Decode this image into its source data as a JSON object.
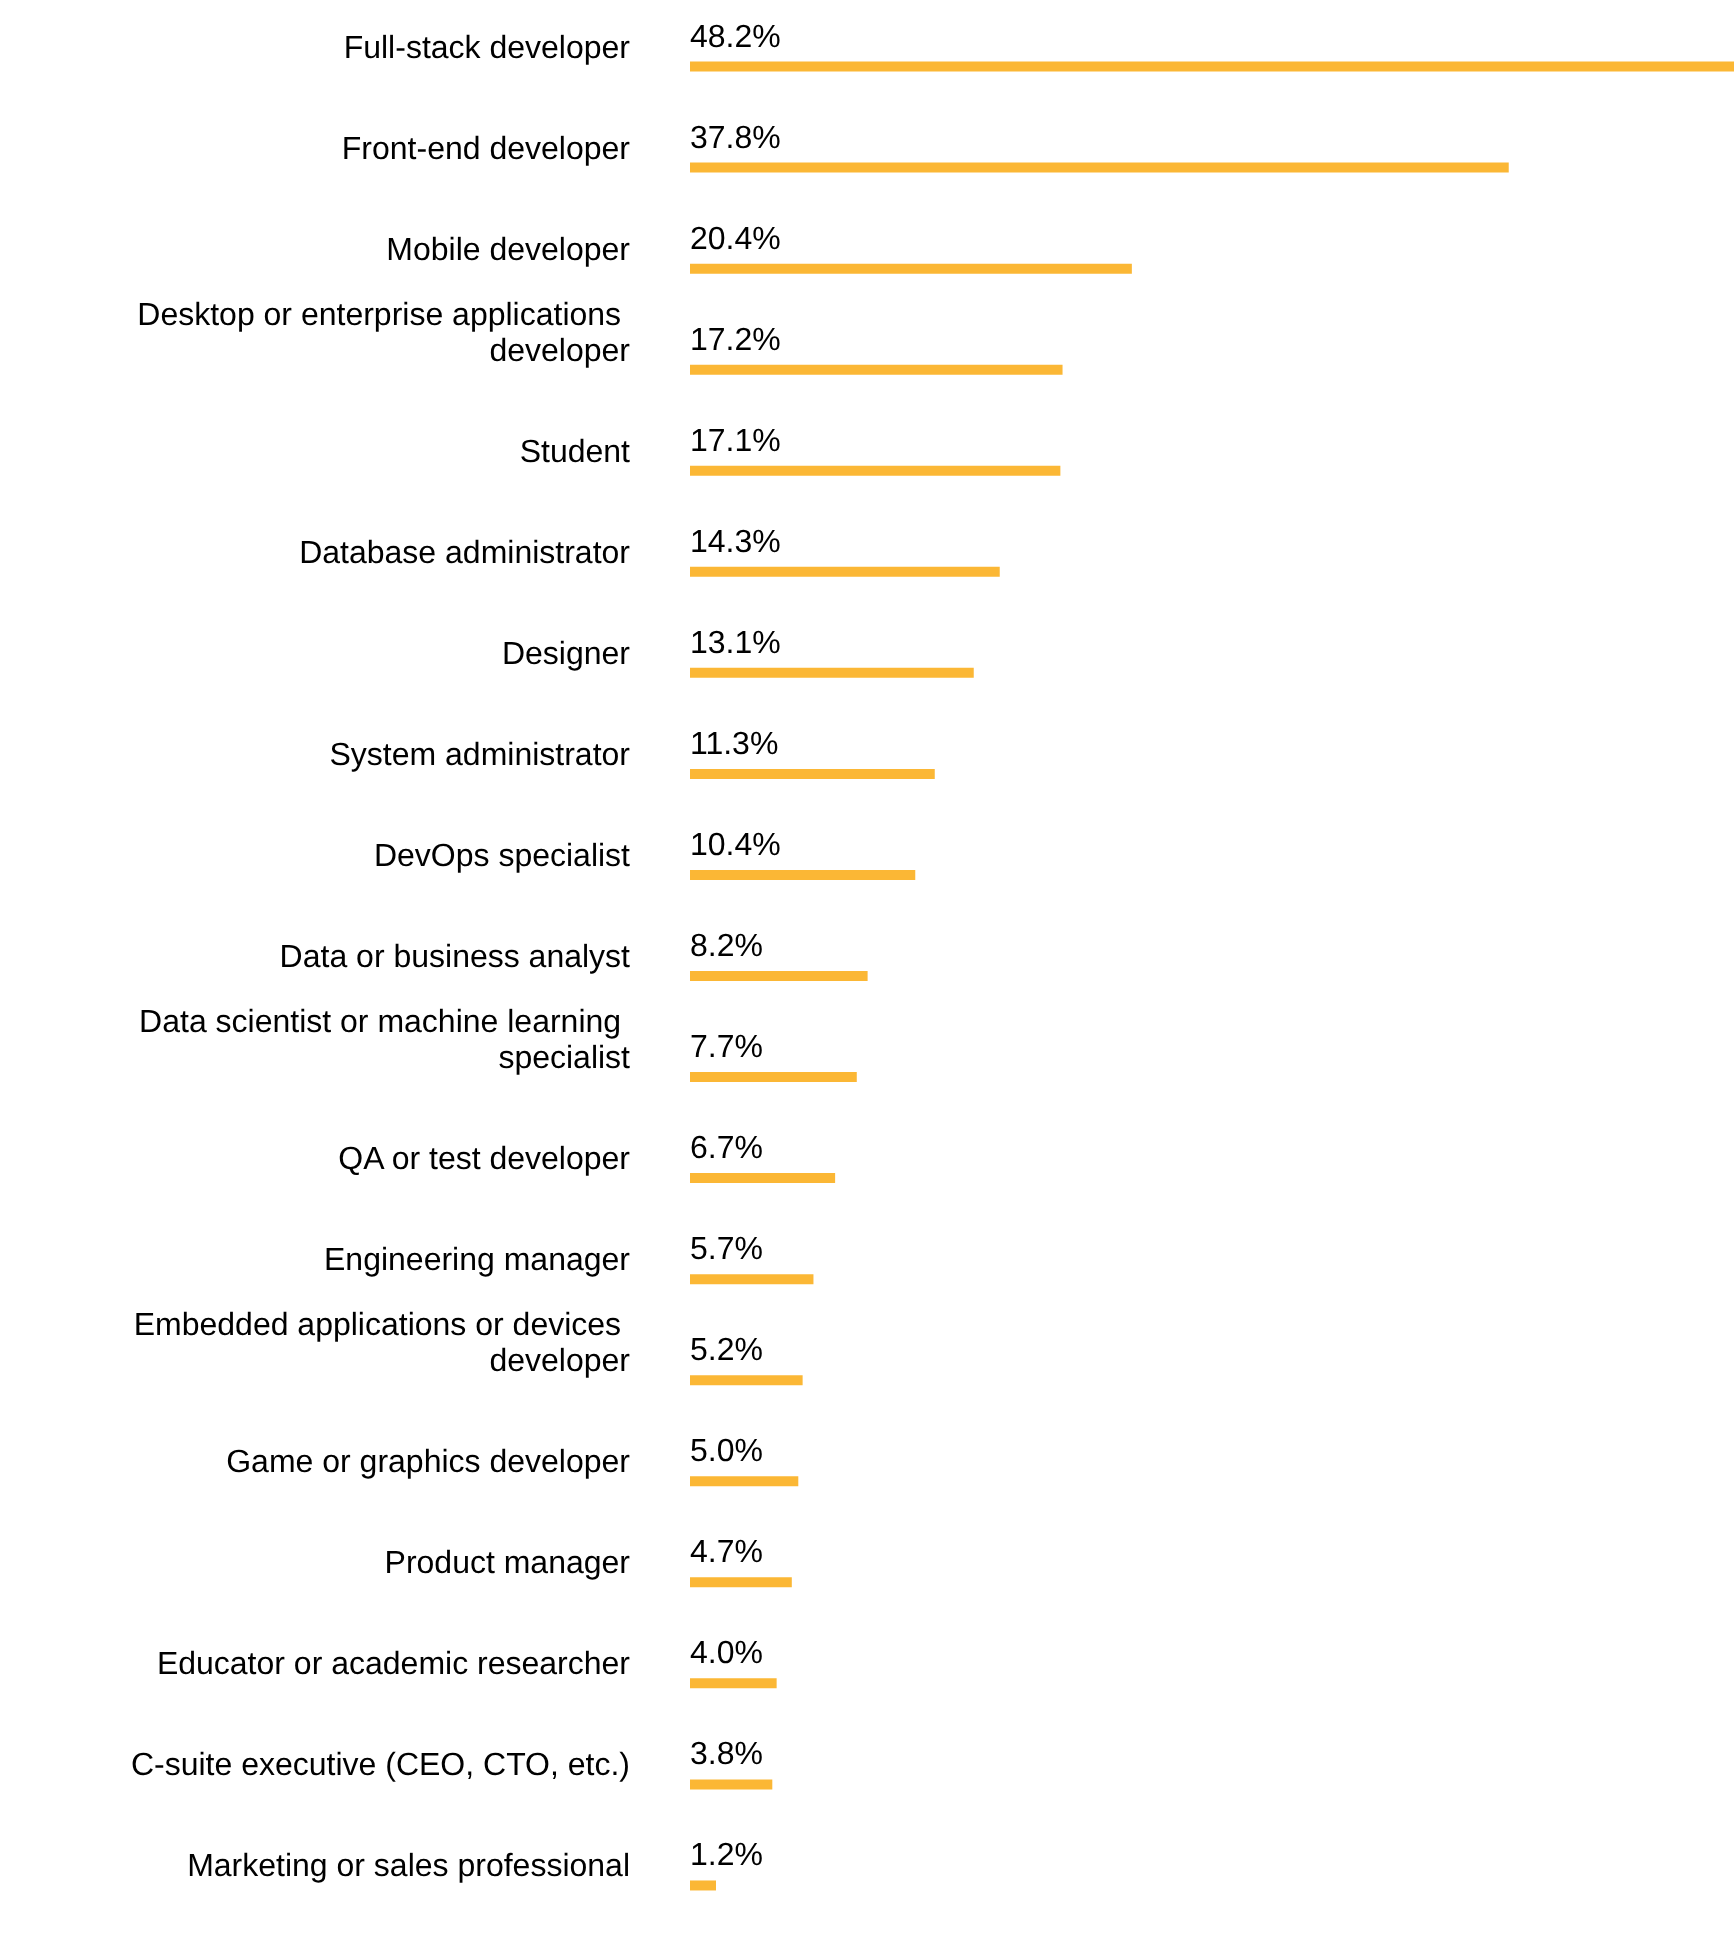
{
  "chart_data": {
    "type": "bar",
    "orientation": "horizontal",
    "categories": [
      "Full-stack developer",
      "Front-end developer",
      "Mobile developer",
      "Desktop or enterprise applications developer",
      "Student",
      "Database administrator",
      "Designer",
      "System administrator",
      "DevOps specialist",
      "Data or business analyst",
      "Data scientist or machine learning specialist",
      "QA or test developer",
      "Engineering manager",
      "Embedded applications or devices developer",
      "Game or graphics developer",
      "Product manager",
      "Educator or academic researcher",
      "C-suite executive (CEO, CTO, etc.)",
      "Marketing or sales professional"
    ],
    "values": [
      48.2,
      37.8,
      20.4,
      17.2,
      17.1,
      14.3,
      13.1,
      11.3,
      10.4,
      8.2,
      7.7,
      6.7,
      5.7,
      5.2,
      5.0,
      4.7,
      4.0,
      3.8,
      1.2
    ],
    "value_labels": [
      "48.2%",
      "37.8%",
      "20.4%",
      "17.2%",
      "17.1%",
      "14.3%",
      "13.1%",
      "11.3%",
      "10.4%",
      "8.2%",
      "7.7%",
      "6.7%",
      "5.7%",
      "5.2%",
      "5.0%",
      "4.7%",
      "4.0%",
      "3.8%",
      "1.2%"
    ],
    "color": "#fbb735"
  }
}
